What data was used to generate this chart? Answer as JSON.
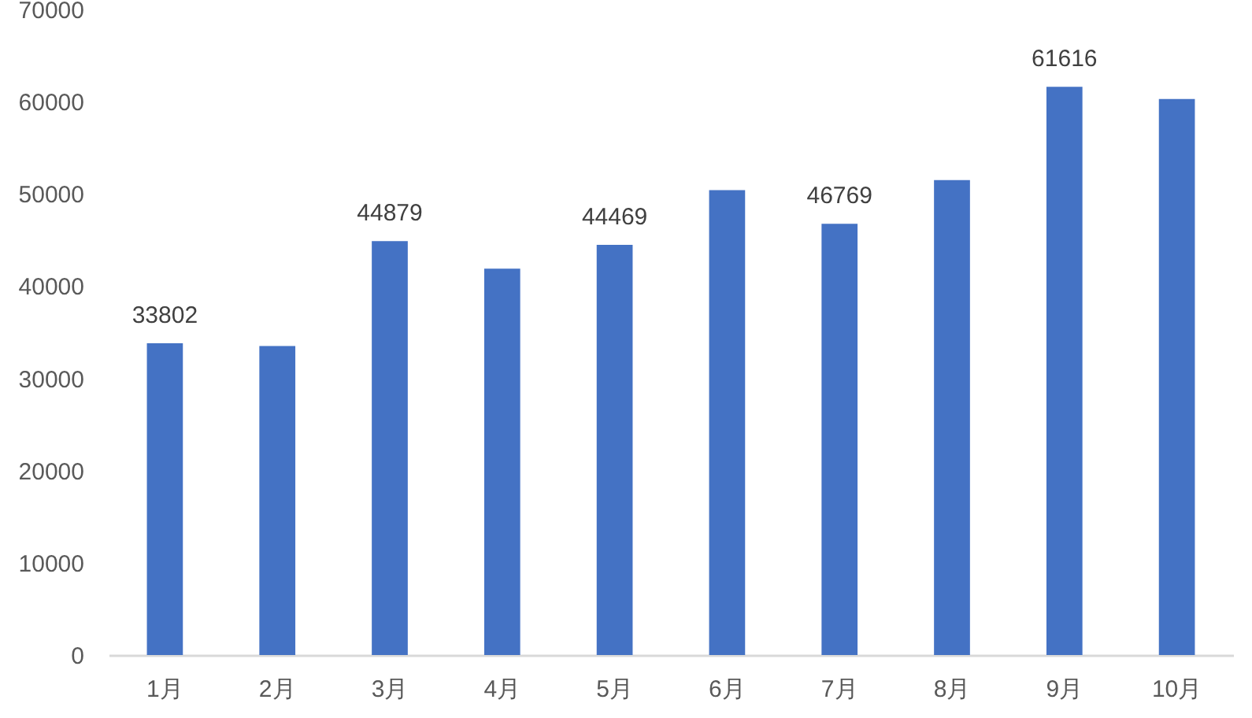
{
  "chart_data": {
    "type": "bar",
    "categories": [
      "1月",
      "2月",
      "3月",
      "4月",
      "5月",
      "6月",
      "7月",
      "8月",
      "9月",
      "10月"
    ],
    "values": [
      33802,
      33500,
      44879,
      41900,
      44469,
      50400,
      46769,
      51500,
      61616,
      60300
    ],
    "value_labels": [
      "33802",
      null,
      "44879",
      null,
      "44469",
      null,
      "46769",
      null,
      "61616",
      null
    ],
    "color": "#4472c4",
    "ylim": [
      0,
      70000
    ],
    "yticks": [
      0,
      10000,
      20000,
      30000,
      40000,
      50000,
      60000,
      70000
    ]
  }
}
